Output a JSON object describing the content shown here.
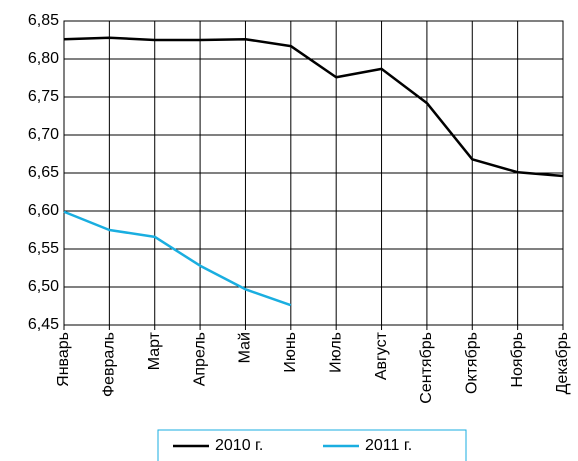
{
  "chart_data": {
    "type": "line",
    "categories": [
      "Январь",
      "Февраль",
      "Март",
      "Апрель",
      "Май",
      "Июнь",
      "Июль",
      "Август",
      "Сентябрь",
      "Октябрь",
      "Ноябрь",
      "Декабрь"
    ],
    "series": [
      {
        "name": "2010 г.",
        "color": "#000000",
        "values": [
          6.826,
          6.828,
          6.825,
          6.825,
          6.826,
          6.817,
          6.776,
          6.787,
          6.742,
          6.668,
          6.651,
          6.646
        ]
      },
      {
        "name": "2011 г.",
        "color": "#1aaee0",
        "values": [
          6.599,
          6.575,
          6.566,
          6.528,
          6.497,
          6.476,
          null,
          null,
          null,
          null,
          null,
          null
        ]
      }
    ],
    "ylim": [
      6.45,
      6.85
    ],
    "yticks": [
      {
        "value": 6.45,
        "label": "6,45"
      },
      {
        "value": 6.5,
        "label": "6,50"
      },
      {
        "value": 6.55,
        "label": "6,55"
      },
      {
        "value": 6.6,
        "label": "6,60"
      },
      {
        "value": 6.65,
        "label": "6,65"
      },
      {
        "value": 6.7,
        "label": "6,70"
      },
      {
        "value": 6.75,
        "label": "6,75"
      },
      {
        "value": 6.8,
        "label": "6,80"
      },
      {
        "value": 6.85,
        "label": "6,85"
      }
    ],
    "grid": true,
    "legend": "bottom"
  }
}
